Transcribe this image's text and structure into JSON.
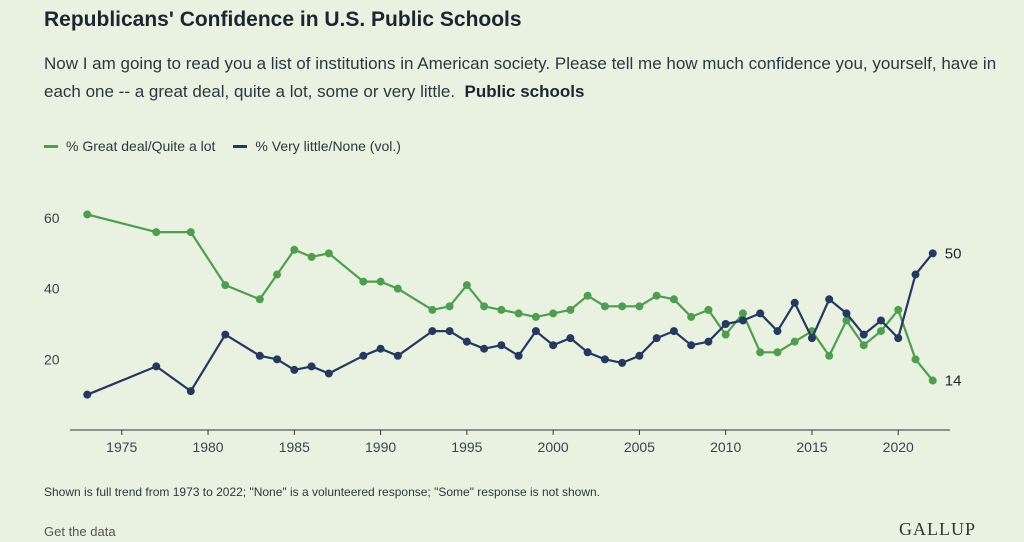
{
  "header": {
    "title": "Republicans' Confidence in U.S. Public Schools",
    "subtitle": "Now I am going to read you a list of institutions in American society. Please tell me how much confidence you, yourself, have in each one -- a great deal, quite a lot, some or very little.",
    "topic": "Public schools"
  },
  "footer": {
    "note": "Shown is full trend from 1973 to 2022; \"None\" is a volunteered response; \"Some\" response is not shown.",
    "get_data": "Get the data",
    "brand": "GALLUP"
  },
  "colors": {
    "great": "#4f9e4f",
    "little": "#25385e",
    "background": "#e9f2e1"
  },
  "chart_data": {
    "type": "line",
    "grid": false,
    "legend_position": "top-left",
    "xlim": [
      1972,
      2023
    ],
    "ylim": [
      0,
      70
    ],
    "xticks": [
      "1975",
      "1980",
      "1985",
      "1990",
      "1995",
      "2000",
      "2005",
      "2010",
      "2015",
      "2020"
    ],
    "yticks": [
      "20",
      "40",
      "60"
    ],
    "series": [
      {
        "name": "% Great deal/Quite a lot",
        "color": "#4f9e4f",
        "end_label": "14",
        "points": [
          [
            1973,
            61
          ],
          [
            1977,
            56
          ],
          [
            1979,
            56
          ],
          [
            1981,
            41
          ],
          [
            1983,
            37
          ],
          [
            1984,
            44
          ],
          [
            1985,
            51
          ],
          [
            1986,
            49
          ],
          [
            1987,
            50
          ],
          [
            1989,
            42
          ],
          [
            1990,
            42
          ],
          [
            1991,
            40
          ],
          [
            1993,
            34
          ],
          [
            1994,
            35
          ],
          [
            1995,
            41
          ],
          [
            1996,
            35
          ],
          [
            1997,
            34
          ],
          [
            1998,
            33
          ],
          [
            1999,
            32
          ],
          [
            2000,
            33
          ],
          [
            2001,
            34
          ],
          [
            2002,
            38
          ],
          [
            2003,
            35
          ],
          [
            2004,
            35
          ],
          [
            2005,
            35
          ],
          [
            2006,
            38
          ],
          [
            2007,
            37
          ],
          [
            2008,
            32
          ],
          [
            2009,
            34
          ],
          [
            2010,
            27
          ],
          [
            2011,
            33
          ],
          [
            2012,
            22
          ],
          [
            2013,
            22
          ],
          [
            2014,
            25
          ],
          [
            2015,
            28
          ],
          [
            2016,
            21
          ],
          [
            2017,
            31
          ],
          [
            2018,
            24
          ],
          [
            2019,
            28
          ],
          [
            2020,
            34
          ],
          [
            2021,
            20
          ],
          [
            2022,
            14
          ]
        ]
      },
      {
        "name": "% Very little/None (vol.)",
        "color": "#25385e",
        "end_label": "50",
        "points": [
          [
            1973,
            10
          ],
          [
            1977,
            18
          ],
          [
            1979,
            11
          ],
          [
            1981,
            27
          ],
          [
            1983,
            21
          ],
          [
            1984,
            20
          ],
          [
            1985,
            17
          ],
          [
            1986,
            18
          ],
          [
            1987,
            16
          ],
          [
            1989,
            21
          ],
          [
            1990,
            23
          ],
          [
            1991,
            21
          ],
          [
            1993,
            28
          ],
          [
            1994,
            28
          ],
          [
            1995,
            25
          ],
          [
            1996,
            23
          ],
          [
            1997,
            24
          ],
          [
            1998,
            21
          ],
          [
            1999,
            28
          ],
          [
            2000,
            24
          ],
          [
            2001,
            26
          ],
          [
            2002,
            22
          ],
          [
            2003,
            20
          ],
          [
            2004,
            19
          ],
          [
            2005,
            21
          ],
          [
            2006,
            26
          ],
          [
            2007,
            28
          ],
          [
            2008,
            24
          ],
          [
            2009,
            25
          ],
          [
            2010,
            30
          ],
          [
            2011,
            31
          ],
          [
            2012,
            33
          ],
          [
            2013,
            28
          ],
          [
            2014,
            36
          ],
          [
            2015,
            26
          ],
          [
            2016,
            37
          ],
          [
            2017,
            33
          ],
          [
            2018,
            27
          ],
          [
            2019,
            31
          ],
          [
            2020,
            26
          ],
          [
            2021,
            44
          ],
          [
            2022,
            50
          ]
        ]
      }
    ]
  }
}
